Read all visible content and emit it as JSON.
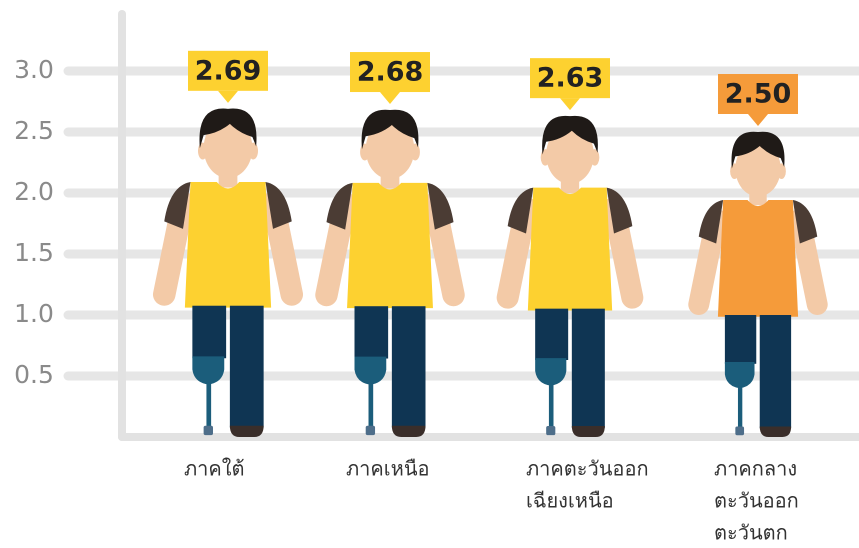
{
  "chart_data": {
    "type": "pictograph",
    "categories": [
      [
        "ภาคใต้"
      ],
      [
        "ภาคเหนือ"
      ],
      [
        "ภาคตะวันออก",
        "เฉียงเหนือ"
      ],
      [
        "ภาคกลาง",
        "ตะวันออก",
        "ตะวันตก"
      ]
    ],
    "values": [
      2.69,
      2.68,
      2.63,
      2.5
    ],
    "value_labels": [
      "2.69",
      "2.68",
      "2.63",
      "2.50"
    ],
    "colors": [
      "#fdd130",
      "#fdd130",
      "#fdd130",
      "#f59b3a"
    ],
    "ylim": [
      0,
      3.5
    ],
    "yticks": [
      0.5,
      {
        "value": 1,
        "label": "1.0"
      },
      1.5,
      {
        "value": 2,
        "label": "2.0"
      },
      2.5,
      {
        "value": 3,
        "label": "3.0"
      }
    ],
    "grid": true
  }
}
